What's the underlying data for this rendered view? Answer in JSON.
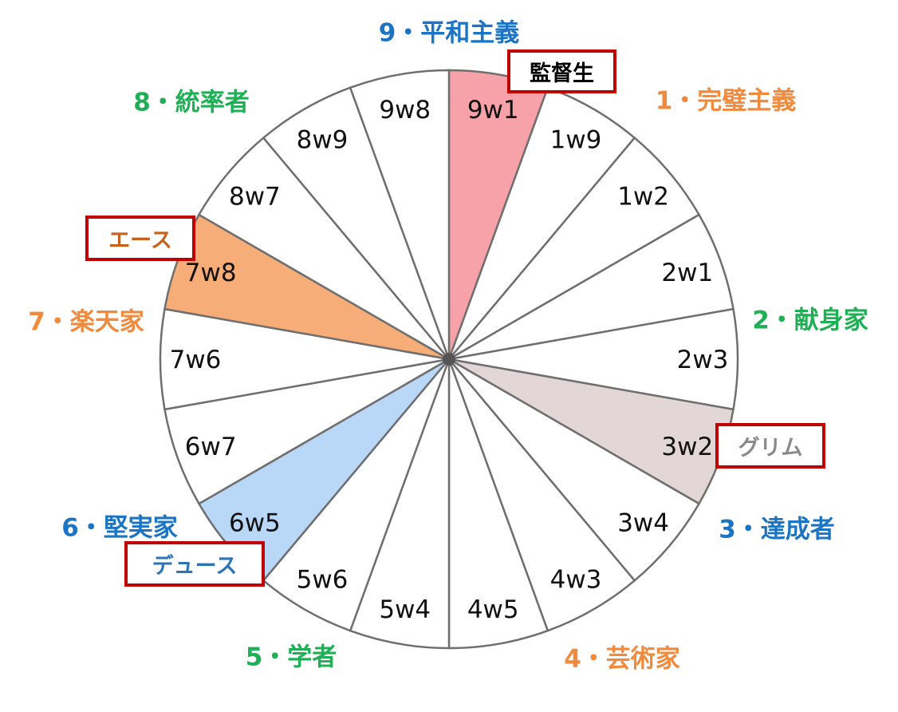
{
  "segments": [
    {
      "label": "9w1",
      "fill": "#f6a2a8"
    },
    {
      "label": "1w9"
    },
    {
      "label": "1w2"
    },
    {
      "label": "2w1"
    },
    {
      "label": "2w3"
    },
    {
      "label": "3w2",
      "fill": "#e2d6d6"
    },
    {
      "label": "3w4"
    },
    {
      "label": "4w3"
    },
    {
      "label": "4w5"
    },
    {
      "label": "5w4"
    },
    {
      "label": "5w6"
    },
    {
      "label": "6w5",
      "fill": "#b9d7f6"
    },
    {
      "label": "6w7"
    },
    {
      "label": "7w6"
    },
    {
      "label": "7w8",
      "fill": "#f6ad78"
    },
    {
      "label": "8w7"
    },
    {
      "label": "8w9"
    },
    {
      "label": "9w8"
    }
  ],
  "types": [
    {
      "text": "9・平和主義",
      "color": "#1b75c4"
    },
    {
      "text": "1・完璧主義",
      "color": "#f08a3c"
    },
    {
      "text": "2・献身家",
      "color": "#1fb055"
    },
    {
      "text": "3・達成者",
      "color": "#1b75c4"
    },
    {
      "text": "4・芸術家",
      "color": "#f08a3c"
    },
    {
      "text": "5・学者",
      "color": "#1fb055"
    },
    {
      "text": "6・堅実家",
      "color": "#1b75c4"
    },
    {
      "text": "7・楽天家",
      "color": "#f08a3c"
    },
    {
      "text": "8・統率者",
      "color": "#1fb055"
    }
  ],
  "characters": [
    {
      "name": "監督生",
      "color": "#000000"
    },
    {
      "name": "エース",
      "color": "#c5631c"
    },
    {
      "name": "グリム",
      "color": "#8a8a8a"
    },
    {
      "name": "デュース",
      "color": "#2e75b6"
    }
  ]
}
